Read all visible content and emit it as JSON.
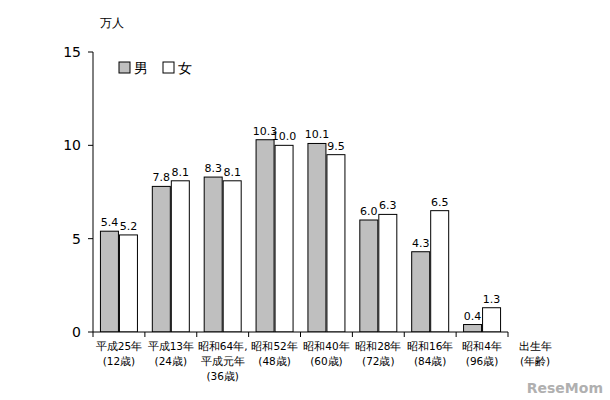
{
  "chart_data": {
    "type": "bar",
    "y_label": "万人",
    "x_label": "出生年\n(年齢)",
    "categories": [
      "平成25年\n(12歳)",
      "平成13年\n(24歳)",
      "昭和64年,\n平成元年\n(36歳)",
      "昭和52年\n(48歳)",
      "昭和40年\n(60歳)",
      "昭和28年\n(72歳)",
      "昭和16年\n(84歳)",
      "昭和4年\n(96歳)"
    ],
    "series": [
      {
        "name": "男",
        "color": "#bfbfbf",
        "values": [
          5.4,
          7.8,
          8.3,
          10.3,
          10.1,
          6.0,
          4.3,
          0.4
        ],
        "value_labels": [
          "5.4",
          "7.8",
          "8.3",
          "10.3",
          "10.1",
          "6.0",
          "4.3",
          "0.4"
        ]
      },
      {
        "name": "女",
        "color": "#ffffff",
        "values": [
          5.2,
          8.1,
          8.1,
          10.0,
          9.5,
          6.3,
          6.5,
          1.3
        ],
        "value_labels": [
          "5.2",
          "8.1",
          "8.1",
          "10.0",
          "9.5",
          "6.3",
          "6.5",
          "1.3"
        ]
      }
    ],
    "ylim": [
      0,
      15
    ],
    "yticks": [
      0,
      5,
      10,
      15
    ],
    "data_labels": true,
    "legend": "top-left",
    "watermark": "ReseMom"
  }
}
